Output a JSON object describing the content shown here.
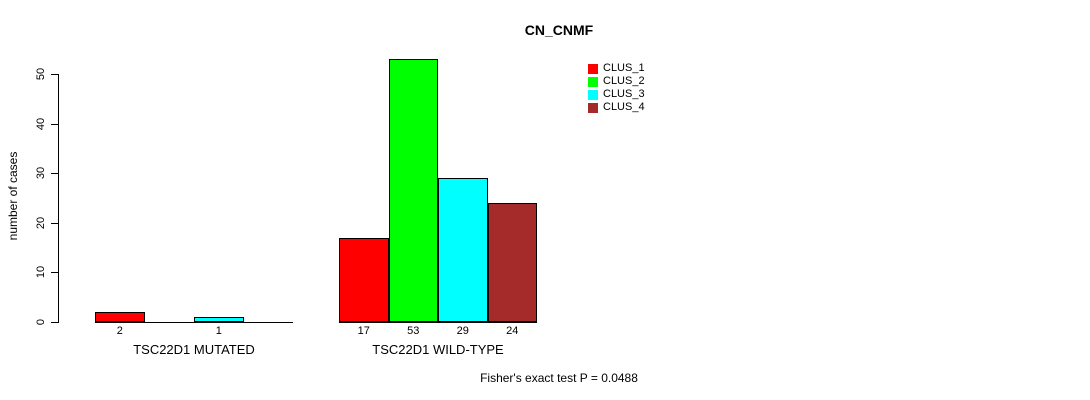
{
  "title": "CN_CNMF",
  "y_axis": {
    "label": "number of cases"
  },
  "annotation": "Fisher's exact test P = 0.0488",
  "chart_data": {
    "type": "bar",
    "title": "CN_CNMF",
    "xlabel": "",
    "ylabel": "number of cases",
    "ylim": [
      0,
      50
    ],
    "yticks": [
      0,
      10,
      20,
      30,
      40,
      50
    ],
    "grid": false,
    "legend_position": "top-right",
    "series": [
      "CLUS_1",
      "CLUS_2",
      "CLUS_3",
      "CLUS_4"
    ],
    "colors": [
      "#FF0000",
      "#00FF00",
      "#00FFFF",
      "#A52A2A"
    ],
    "groups": [
      {
        "label": "TSC22D1 MUTATED",
        "values": [
          2,
          0,
          1,
          0
        ],
        "bar_labels": [
          "2",
          "",
          "1",
          ""
        ]
      },
      {
        "label": "TSC22D1 WILD-TYPE",
        "values": [
          17,
          53,
          29,
          24
        ],
        "bar_labels": [
          "17",
          "53",
          "29",
          "24"
        ]
      }
    ],
    "annotation": "Fisher's exact test P = 0.0488"
  }
}
